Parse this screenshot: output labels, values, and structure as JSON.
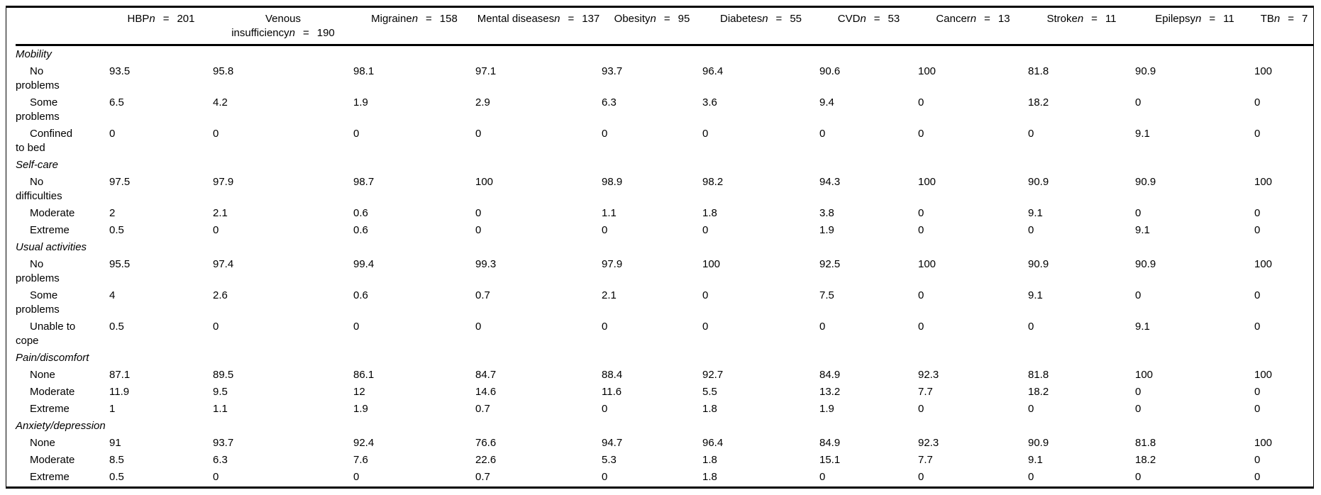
{
  "table": {
    "n_symbol": "n",
    "equals": "=",
    "columns": [
      {
        "name": "HBP",
        "count": "201"
      },
      {
        "name": "Venous insufficiency",
        "count": "190"
      },
      {
        "name": "Migraine",
        "count": "158"
      },
      {
        "name": "Mental diseases",
        "count": "137"
      },
      {
        "name": "Obesity",
        "count": "95"
      },
      {
        "name": "Diabetes",
        "count": "55"
      },
      {
        "name": "CVD",
        "count": "53"
      },
      {
        "name": "Cancer",
        "count": "13"
      },
      {
        "name": "Stroke",
        "count": "11"
      },
      {
        "name": "Epilepsy",
        "count": "11"
      },
      {
        "name": "TB",
        "count": "7"
      }
    ],
    "sections": [
      {
        "title": "Mobility",
        "rows": [
          {
            "label": "No problems",
            "values": [
              "93.5",
              "95.8",
              "98.1",
              "97.1",
              "93.7",
              "96.4",
              "90.6",
              "100",
              "81.8",
              "90.9",
              "100"
            ]
          },
          {
            "label": "Some problems",
            "values": [
              "6.5",
              "4.2",
              "1.9",
              "2.9",
              "6.3",
              "3.6",
              "9.4",
              "0",
              "18.2",
              "0",
              "0"
            ]
          },
          {
            "label": "Confined to bed",
            "values": [
              "0",
              "0",
              "0",
              "0",
              "0",
              "0",
              "0",
              "0",
              "0",
              "9.1",
              "0"
            ]
          }
        ]
      },
      {
        "title": "Self-care",
        "rows": [
          {
            "label": "No difficulties",
            "values": [
              "97.5",
              "97.9",
              "98.7",
              "100",
              "98.9",
              "98.2",
              "94.3",
              "100",
              "90.9",
              "90.9",
              "100"
            ]
          },
          {
            "label": "Moderate",
            "values": [
              "2",
              "2.1",
              "0.6",
              "0",
              "1.1",
              "1.8",
              "3.8",
              "0",
              "9.1",
              "0",
              "0"
            ]
          },
          {
            "label": "Extreme",
            "values": [
              "0.5",
              "0",
              "0.6",
              "0",
              "0",
              "0",
              "1.9",
              "0",
              "0",
              "9.1",
              "0"
            ]
          }
        ]
      },
      {
        "title": "Usual activities",
        "rows": [
          {
            "label": "No problems",
            "values": [
              "95.5",
              "97.4",
              "99.4",
              "99.3",
              "97.9",
              "100",
              "92.5",
              "100",
              "90.9",
              "90.9",
              "100"
            ]
          },
          {
            "label": "Some problems",
            "values": [
              "4",
              "2.6",
              "0.6",
              "0.7",
              "2.1",
              "0",
              "7.5",
              "0",
              "9.1",
              "0",
              "0"
            ]
          },
          {
            "label": "Unable to cope",
            "values": [
              "0.5",
              "0",
              "0",
              "0",
              "0",
              "0",
              "0",
              "0",
              "0",
              "9.1",
              "0"
            ]
          }
        ]
      },
      {
        "title": "Pain/discomfort",
        "rows": [
          {
            "label": "None",
            "values": [
              "87.1",
              "89.5",
              "86.1",
              "84.7",
              "88.4",
              "92.7",
              "84.9",
              "92.3",
              "81.8",
              "100",
              "100"
            ]
          },
          {
            "label": "Moderate",
            "values": [
              "11.9",
              "9.5",
              "12",
              "14.6",
              "11.6",
              "5.5",
              "13.2",
              "7.7",
              "18.2",
              "0",
              "0"
            ]
          },
          {
            "label": "Extreme",
            "values": [
              "1",
              "1.1",
              "1.9",
              "0.7",
              "0",
              "1.8",
              "1.9",
              "0",
              "0",
              "0",
              "0"
            ]
          }
        ]
      },
      {
        "title": "Anxiety/depression",
        "rows": [
          {
            "label": "None",
            "values": [
              "91",
              "93.7",
              "92.4",
              "76.6",
              "94.7",
              "96.4",
              "84.9",
              "92.3",
              "90.9",
              "81.8",
              "100"
            ]
          },
          {
            "label": "Moderate",
            "values": [
              "8.5",
              "6.3",
              "7.6",
              "22.6",
              "5.3",
              "1.8",
              "15.1",
              "7.7",
              "9.1",
              "18.2",
              "0"
            ]
          },
          {
            "label": "Extreme",
            "values": [
              "0.5",
              "0",
              "0",
              "0.7",
              "0",
              "1.8",
              "0",
              "0",
              "0",
              "0",
              "0"
            ]
          }
        ]
      }
    ]
  }
}
